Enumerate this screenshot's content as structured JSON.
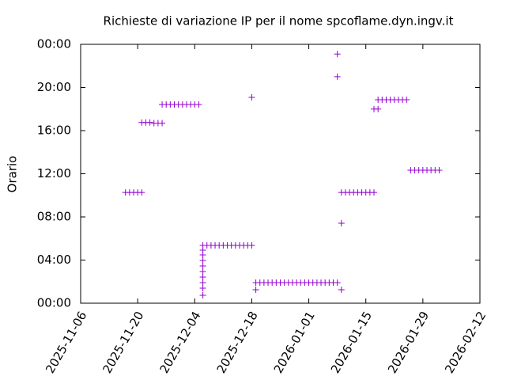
{
  "chart_data": {
    "type": "scatter",
    "title": "Richieste di variazione IP per il nome spcoflame.dyn.ingv.it",
    "y_label": "Orario",
    "xlim": [
      "2025-11-06",
      "2026-02-12"
    ],
    "xticks": [
      "2025-11-06",
      "2025-11-20",
      "2025-12-04",
      "2025-12-18",
      "2026-01-01",
      "2026-01-15",
      "2026-01-29",
      "2026-02-12"
    ],
    "ylim": [
      0,
      24
    ],
    "yticks": [
      {
        "value": 0,
        "label": "00:00"
      },
      {
        "value": 4,
        "label": "04:00"
      },
      {
        "value": 8,
        "label": "08:00"
      },
      {
        "value": 12,
        "label": "12:00"
      },
      {
        "value": 16,
        "label": "16:00"
      },
      {
        "value": 20,
        "label": "20:00"
      },
      {
        "value": 24,
        "label": "00:00"
      }
    ],
    "grid": false,
    "series": [
      {
        "color": "#9400d3",
        "x": [
          "2025-11-17",
          "2025-11-18",
          "2025-11-19",
          "2025-11-20",
          "2025-11-21",
          "2025-11-21",
          "2025-11-22",
          "2025-11-23",
          "2025-11-24",
          "2025-11-25",
          "2025-11-26",
          "2025-11-26",
          "2025-11-27",
          "2025-11-28",
          "2025-11-29",
          "2025-11-30",
          "2025-12-01",
          "2025-12-02",
          "2025-12-03",
          "2025-12-04",
          "2025-12-05",
          "2025-12-06",
          "2025-12-06",
          "2025-12-06",
          "2025-12-06",
          "2025-12-06",
          "2025-12-06",
          "2025-12-06",
          "2025-12-06",
          "2025-12-06",
          "2025-12-06",
          "2025-12-07",
          "2025-12-08",
          "2025-12-09",
          "2025-12-10",
          "2025-12-11",
          "2025-12-12",
          "2025-12-13",
          "2025-12-14",
          "2025-12-15",
          "2025-12-16",
          "2025-12-17",
          "2025-12-18",
          "2025-12-18",
          "2025-12-19",
          "2025-12-19",
          "2025-12-20",
          "2025-12-21",
          "2025-12-22",
          "2025-12-23",
          "2025-12-24",
          "2025-12-25",
          "2025-12-26",
          "2025-12-27",
          "2025-12-28",
          "2025-12-29",
          "2025-12-30",
          "2025-12-31",
          "2026-01-01",
          "2026-01-02",
          "2026-01-03",
          "2026-01-04",
          "2026-01-05",
          "2026-01-06",
          "2026-01-07",
          "2026-01-08",
          "2026-01-08",
          "2026-01-08",
          "2026-01-09",
          "2026-01-09",
          "2026-01-09",
          "2026-01-10",
          "2026-01-11",
          "2026-01-12",
          "2026-01-13",
          "2026-01-14",
          "2026-01-15",
          "2026-01-16",
          "2026-01-17",
          "2026-01-17",
          "2026-01-18",
          "2026-01-18",
          "2026-01-19",
          "2026-01-20",
          "2026-01-21",
          "2026-01-22",
          "2026-01-23",
          "2026-01-24",
          "2026-01-25",
          "2026-01-26",
          "2026-01-27",
          "2026-01-28",
          "2026-01-29",
          "2026-01-30",
          "2026-01-31",
          "2026-02-01",
          "2026-02-02"
        ],
        "values": [
          10.27,
          10.27,
          10.27,
          10.27,
          10.27,
          16.75,
          16.75,
          16.75,
          16.7,
          16.7,
          16.7,
          18.42,
          18.42,
          18.42,
          18.42,
          18.42,
          18.42,
          18.42,
          18.42,
          18.42,
          18.42,
          4.92,
          4.48,
          3.96,
          3.45,
          2.94,
          2.42,
          1.91,
          1.39,
          0.73,
          5.36,
          5.36,
          5.36,
          5.36,
          5.36,
          5.36,
          5.36,
          5.36,
          5.36,
          5.36,
          5.36,
          5.36,
          5.36,
          19.08,
          1.25,
          1.91,
          1.91,
          1.91,
          1.91,
          1.91,
          1.91,
          1.91,
          1.91,
          1.91,
          1.91,
          1.91,
          1.91,
          1.91,
          1.91,
          1.91,
          1.91,
          1.91,
          1.91,
          1.91,
          1.91,
          1.91,
          23.1,
          21.0,
          7.41,
          1.25,
          10.27,
          10.27,
          10.27,
          10.27,
          10.27,
          10.27,
          10.27,
          10.27,
          10.27,
          18.0,
          18.0,
          18.86,
          18.86,
          18.86,
          18.86,
          18.86,
          18.86,
          18.86,
          18.86,
          12.33,
          12.33,
          12.33,
          12.33,
          12.33,
          12.33,
          12.33,
          12.33
        ]
      }
    ]
  }
}
